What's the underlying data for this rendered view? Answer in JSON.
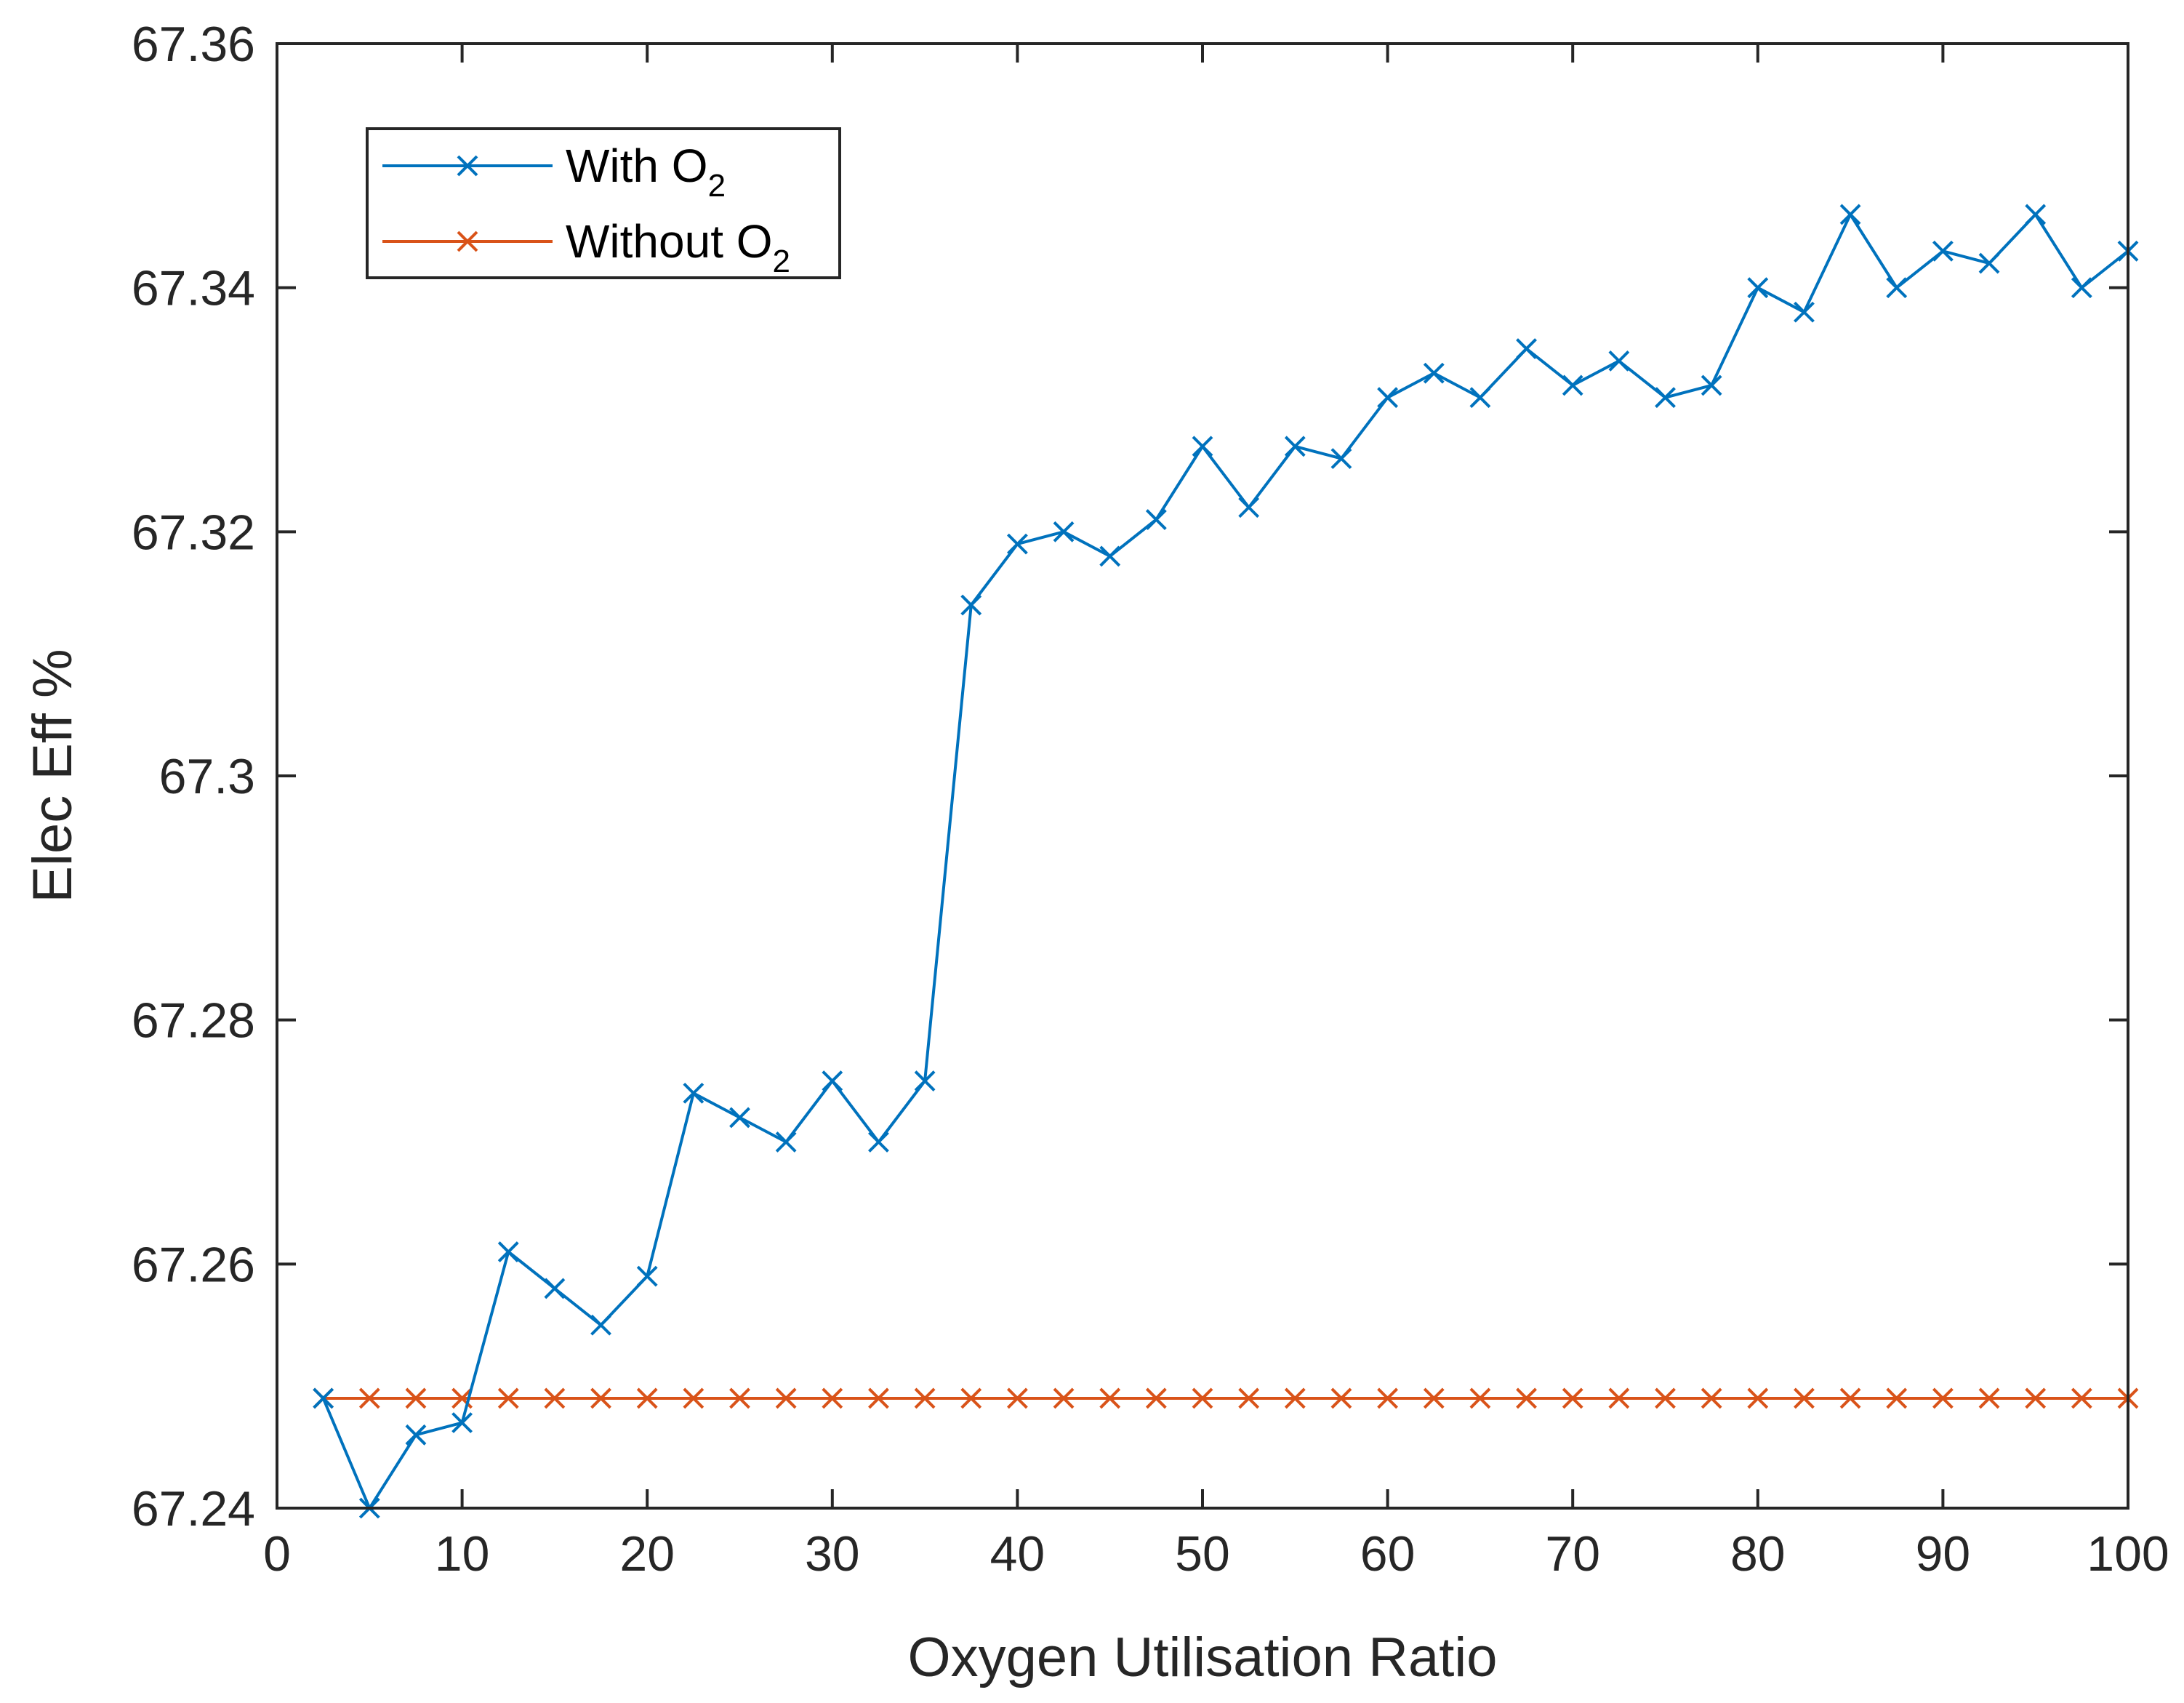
{
  "chart_data": {
    "type": "line",
    "title": "",
    "xlabel": "Oxygen Utilisation Ratio",
    "ylabel": "Elec Eff %",
    "xlim": [
      0,
      100
    ],
    "ylim": [
      67.24,
      67.36
    ],
    "xticks": [
      0,
      10,
      20,
      30,
      40,
      50,
      60,
      70,
      80,
      90,
      100
    ],
    "yticks": [
      67.24,
      67.26,
      67.28,
      67.3,
      67.32,
      67.34,
      67.36
    ],
    "xtick_labels": [
      "0",
      "10",
      "20",
      "30",
      "40",
      "50",
      "60",
      "70",
      "80",
      "90",
      "100"
    ],
    "ytick_labels": [
      "67.24",
      "67.26",
      "67.28",
      "67.3",
      "67.32",
      "67.34",
      "67.36"
    ],
    "grid": false,
    "legend_position": "top-left",
    "x": [
      2.5,
      5,
      7.5,
      10,
      12.5,
      15,
      17.5,
      20,
      22.5,
      25,
      27.5,
      30,
      32.5,
      35,
      37.5,
      40,
      42.5,
      45,
      47.5,
      50,
      52.5,
      55,
      57.5,
      60,
      62.5,
      65,
      67.5,
      70,
      72.5,
      75,
      77.5,
      80,
      82.5,
      85,
      87.5,
      90,
      92.5,
      95,
      97.5,
      100
    ],
    "series": [
      {
        "name": "With O2",
        "legend_main": "With O",
        "legend_sub": "2",
        "color": "#0072BD",
        "marker": "x",
        "values": [
          67.249,
          67.24,
          67.246,
          67.247,
          67.261,
          67.258,
          67.255,
          67.259,
          67.274,
          67.272,
          67.27,
          67.275,
          67.27,
          67.275,
          67.314,
          67.319,
          67.32,
          67.318,
          67.321,
          67.327,
          67.322,
          67.327,
          67.326,
          67.331,
          67.333,
          67.331,
          67.335,
          67.332,
          67.334,
          67.331,
          67.332,
          67.34,
          67.338,
          67.346,
          67.34,
          67.343,
          67.342,
          67.346,
          67.34,
          67.343
        ]
      },
      {
        "name": "Without O2",
        "legend_main": "Without O",
        "legend_sub": "2",
        "color": "#D95319",
        "marker": "x",
        "values": [
          67.249,
          67.249,
          67.249,
          67.249,
          67.249,
          67.249,
          67.249,
          67.249,
          67.249,
          67.249,
          67.249,
          67.249,
          67.249,
          67.249,
          67.249,
          67.249,
          67.249,
          67.249,
          67.249,
          67.249,
          67.249,
          67.249,
          67.249,
          67.249,
          67.249,
          67.249,
          67.249,
          67.249,
          67.249,
          67.249,
          67.249,
          67.249,
          67.249,
          67.249,
          67.249,
          67.249,
          67.249,
          67.249,
          67.249,
          67.249
        ]
      }
    ]
  }
}
